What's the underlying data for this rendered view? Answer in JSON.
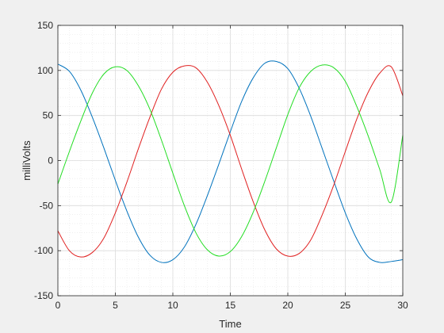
{
  "chart_data": {
    "type": "line",
    "title": "",
    "xlabel": "Time",
    "ylabel": "milliVolts",
    "xlim": [
      0,
      30
    ],
    "ylim": [
      -150,
      150
    ],
    "xticks": [
      0,
      5,
      10,
      15,
      20,
      25,
      30
    ],
    "yticks": [
      -150,
      -100,
      -50,
      0,
      50,
      100,
      150
    ],
    "grid": true,
    "minor_grid": true,
    "series": [
      {
        "color": "#0072BD",
        "x": [
          0,
          1,
          2,
          3,
          4,
          5,
          6,
          7,
          8,
          9,
          10,
          11,
          12,
          13,
          14,
          15,
          16,
          17,
          18,
          19,
          20,
          21,
          22,
          23,
          24,
          25,
          26,
          27,
          28,
          29,
          30
        ],
        "y": [
          107,
          99,
          78,
          48,
          14,
          -22,
          -56,
          -85,
          -105,
          -113,
          -110,
          -96,
          -71,
          -39,
          -4,
          32,
          66,
          92,
          108,
          110,
          102,
          80,
          49,
          13,
          -23,
          -58,
          -87,
          -107,
          -113,
          -112,
          -110
        ]
      },
      {
        "color": "#E02020",
        "x": [
          0,
          1,
          2,
          3,
          4,
          5,
          6,
          7,
          8,
          9,
          10,
          11,
          12,
          13,
          14,
          15,
          16,
          17,
          18,
          19,
          20,
          21,
          22,
          23,
          24,
          25,
          26,
          27,
          28,
          29,
          30
        ],
        "y": [
          -78,
          -100,
          -107,
          -102,
          -86,
          -58,
          -24,
          13,
          48,
          79,
          98,
          105,
          103,
          87,
          61,
          28,
          -10,
          -46,
          -77,
          -98,
          -106,
          -103,
          -88,
          -60,
          -27,
          10,
          46,
          76,
          97,
          104,
          72
        ]
      },
      {
        "color": "#22DD22",
        "x": [
          0,
          1,
          2,
          3,
          4,
          5,
          6,
          7,
          8,
          9,
          10,
          11,
          12,
          13,
          14,
          15,
          16,
          17,
          18,
          19,
          20,
          21,
          22,
          23,
          24,
          25,
          26,
          27,
          28,
          29,
          30
        ],
        "y": [
          -26,
          10,
          44,
          75,
          96,
          104,
          100,
          83,
          57,
          23,
          -14,
          -50,
          -80,
          -99,
          -106,
          -101,
          -84,
          -57,
          -23,
          14,
          51,
          81,
          99,
          106,
          103,
          88,
          60,
          27,
          -10,
          -46,
          28
        ]
      }
    ]
  }
}
